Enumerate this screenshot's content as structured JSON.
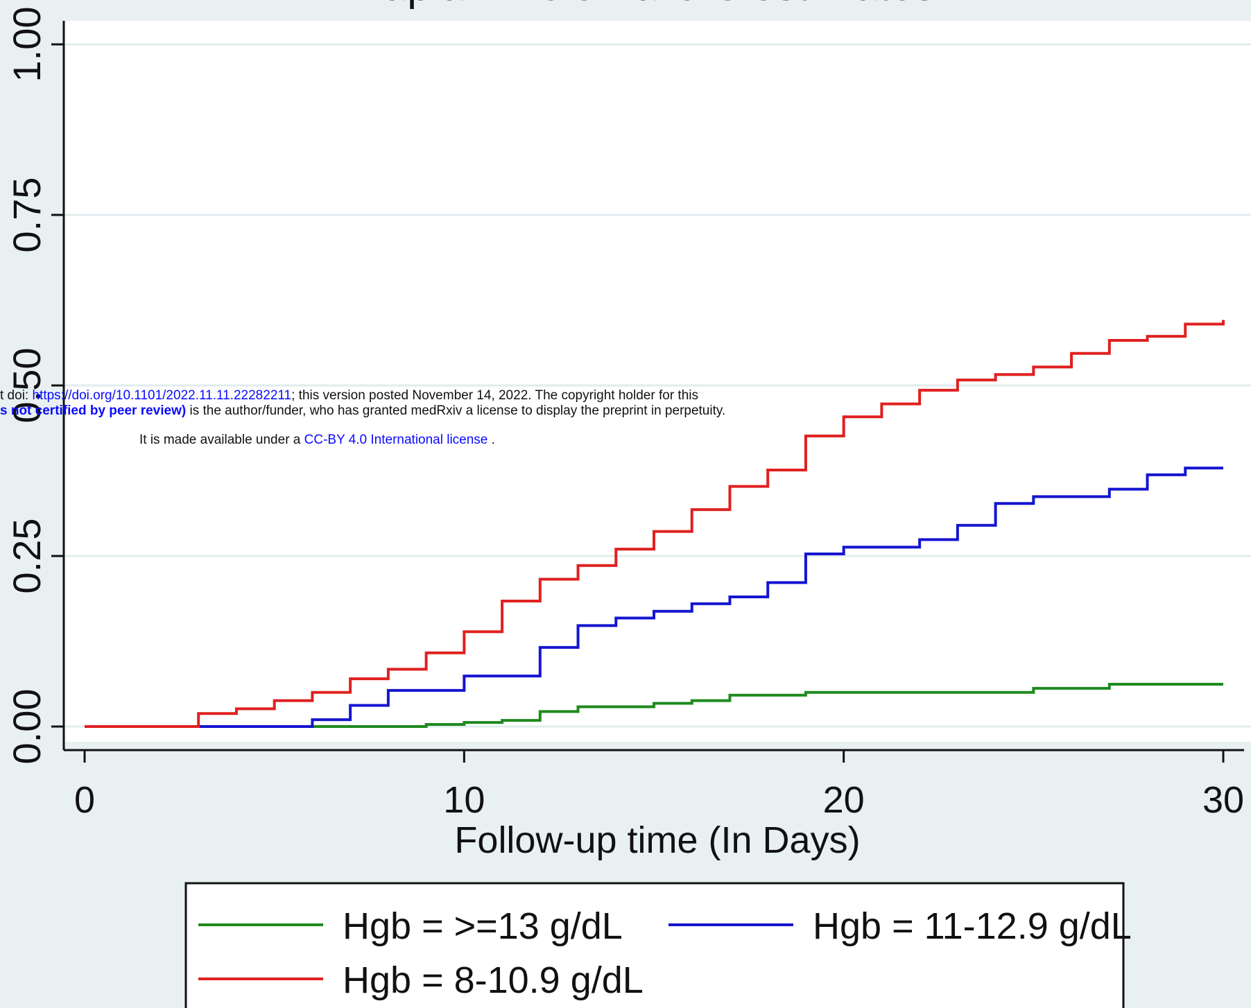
{
  "chart_data": {
    "type": "line",
    "step": true,
    "title": "Kaplan-Meier failure estimates",
    "xlabel": "Follow-up time (In Days)",
    "ylabel": "",
    "xlim": [
      0,
      30
    ],
    "ylim": [
      0,
      1
    ],
    "x_ticks": [
      "0",
      "10",
      "20",
      "30"
    ],
    "y_ticks": [
      "0.00",
      "0.25",
      "0.50",
      "0.75",
      "1.00"
    ],
    "grid": true,
    "legend_position": "bottom",
    "series": [
      {
        "name": "Hgb = >=13 g/dL",
        "color": "#1f8a1f",
        "points": [
          [
            0,
            0
          ],
          [
            6,
            0
          ],
          [
            9,
            0.003
          ],
          [
            10,
            0.006
          ],
          [
            11,
            0.009
          ],
          [
            12,
            0.022
          ],
          [
            13,
            0.029
          ],
          [
            15,
            0.034
          ],
          [
            16,
            0.038
          ],
          [
            17,
            0.046
          ],
          [
            19,
            0.05
          ],
          [
            25,
            0.056
          ],
          [
            27,
            0.062
          ],
          [
            30,
            0.062
          ]
        ]
      },
      {
        "name": "Hgb = 11-12.9 g/dL",
        "color": "#1515d0",
        "points": [
          [
            0,
            0
          ],
          [
            6,
            0.01
          ],
          [
            7,
            0.031
          ],
          [
            8,
            0.053
          ],
          [
            10,
            0.074
          ],
          [
            12,
            0.116
          ],
          [
            13,
            0.148
          ],
          [
            14,
            0.159
          ],
          [
            15,
            0.169
          ],
          [
            16,
            0.18
          ],
          [
            17,
            0.19
          ],
          [
            18,
            0.211
          ],
          [
            19,
            0.253
          ],
          [
            20,
            0.263
          ],
          [
            22,
            0.274
          ],
          [
            23,
            0.295
          ],
          [
            24,
            0.327
          ],
          [
            25,
            0.337
          ],
          [
            27,
            0.348
          ],
          [
            28,
            0.369
          ],
          [
            29,
            0.379
          ],
          [
            30,
            0.379
          ]
        ]
      },
      {
        "name": "Hgb = 8-10.9 g/dL",
        "color": "#e02020",
        "points": [
          [
            0,
            0
          ],
          [
            3,
            0.019
          ],
          [
            4,
            0.026
          ],
          [
            5,
            0.038
          ],
          [
            6,
            0.05
          ],
          [
            7,
            0.07
          ],
          [
            8,
            0.084
          ],
          [
            9,
            0.108
          ],
          [
            10,
            0.139
          ],
          [
            11,
            0.184
          ],
          [
            12,
            0.216
          ],
          [
            13,
            0.236
          ],
          [
            14,
            0.26
          ],
          [
            15,
            0.286
          ],
          [
            16,
            0.318
          ],
          [
            17,
            0.352
          ],
          [
            18,
            0.376
          ],
          [
            19,
            0.426
          ],
          [
            20,
            0.454
          ],
          [
            21,
            0.473
          ],
          [
            22,
            0.493
          ],
          [
            23,
            0.508
          ],
          [
            24,
            0.516
          ],
          [
            25,
            0.527
          ],
          [
            26,
            0.547
          ],
          [
            27,
            0.566
          ],
          [
            28,
            0.572
          ],
          [
            29,
            0.59
          ],
          [
            30,
            0.596
          ]
        ]
      }
    ]
  },
  "notice": {
    "line1_prefix": "t doi: ",
    "doi_link": "https://doi.org/10.1101/2022.11.11.22282211",
    "line1_suffix": "; this version posted November 14, 2022. The copyright holder for this",
    "line2_bold": "s not certified by peer review)",
    "line2_suffix": " is the author/funder, who has granted medRxiv a license to display the preprint in perpetuity.",
    "line3_prefix": "It is made available under a ",
    "license_link": "CC-BY 4.0 International license",
    "line3_suffix": " ."
  }
}
